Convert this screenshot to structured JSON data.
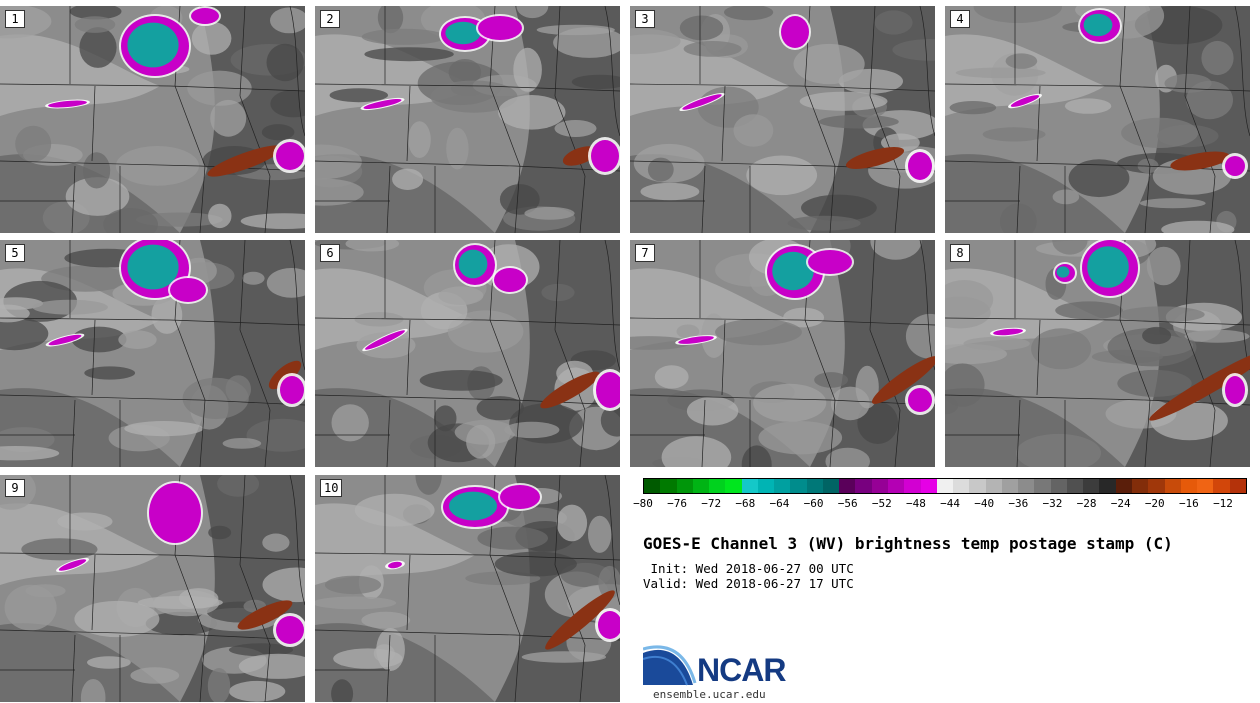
{
  "panels": [
    {
      "label": "1"
    },
    {
      "label": "2"
    },
    {
      "label": "3"
    },
    {
      "label": "4"
    },
    {
      "label": "5"
    },
    {
      "label": "6"
    },
    {
      "label": "7"
    },
    {
      "label": "8"
    },
    {
      "label": "9"
    },
    {
      "label": "10"
    }
  ],
  "colorbar": {
    "colors": [
      "#005a00",
      "#007a00",
      "#00960a",
      "#00b414",
      "#00d21e",
      "#00e61e",
      "#14c8c8",
      "#00b4b4",
      "#00a0a0",
      "#008c8c",
      "#007878",
      "#006464",
      "#5a005a",
      "#78007f",
      "#960096",
      "#b400b4",
      "#d200d2",
      "#e600e6",
      "#f0f0f0",
      "#dcdcdc",
      "#c8c8c8",
      "#b4b4b4",
      "#a0a0a0",
      "#8c8c8c",
      "#787878",
      "#646464",
      "#505050",
      "#3c3c3c",
      "#282828",
      "#5a1e0a",
      "#822d0a",
      "#a0370a",
      "#c84b0a",
      "#e65a0a",
      "#f06414",
      "#d2460a",
      "#b4320a"
    ],
    "ticks": [
      "−80",
      "−76",
      "−72",
      "−68",
      "−64",
      "−60",
      "−56",
      "−52",
      "−48",
      "−44",
      "−40",
      "−36",
      "−32",
      "−28",
      "−24",
      "−20",
      "−16",
      "−12"
    ]
  },
  "title": "GOES-E Channel 3 (WV) brightness temp postage stamp (C)",
  "init": " Init: Wed 2018-06-27 00 UTC",
  "valid": "Valid: Wed 2018-06-27 17 UTC",
  "logo_text": "NCAR",
  "logo_url": "ensemble.ucar.edu"
}
